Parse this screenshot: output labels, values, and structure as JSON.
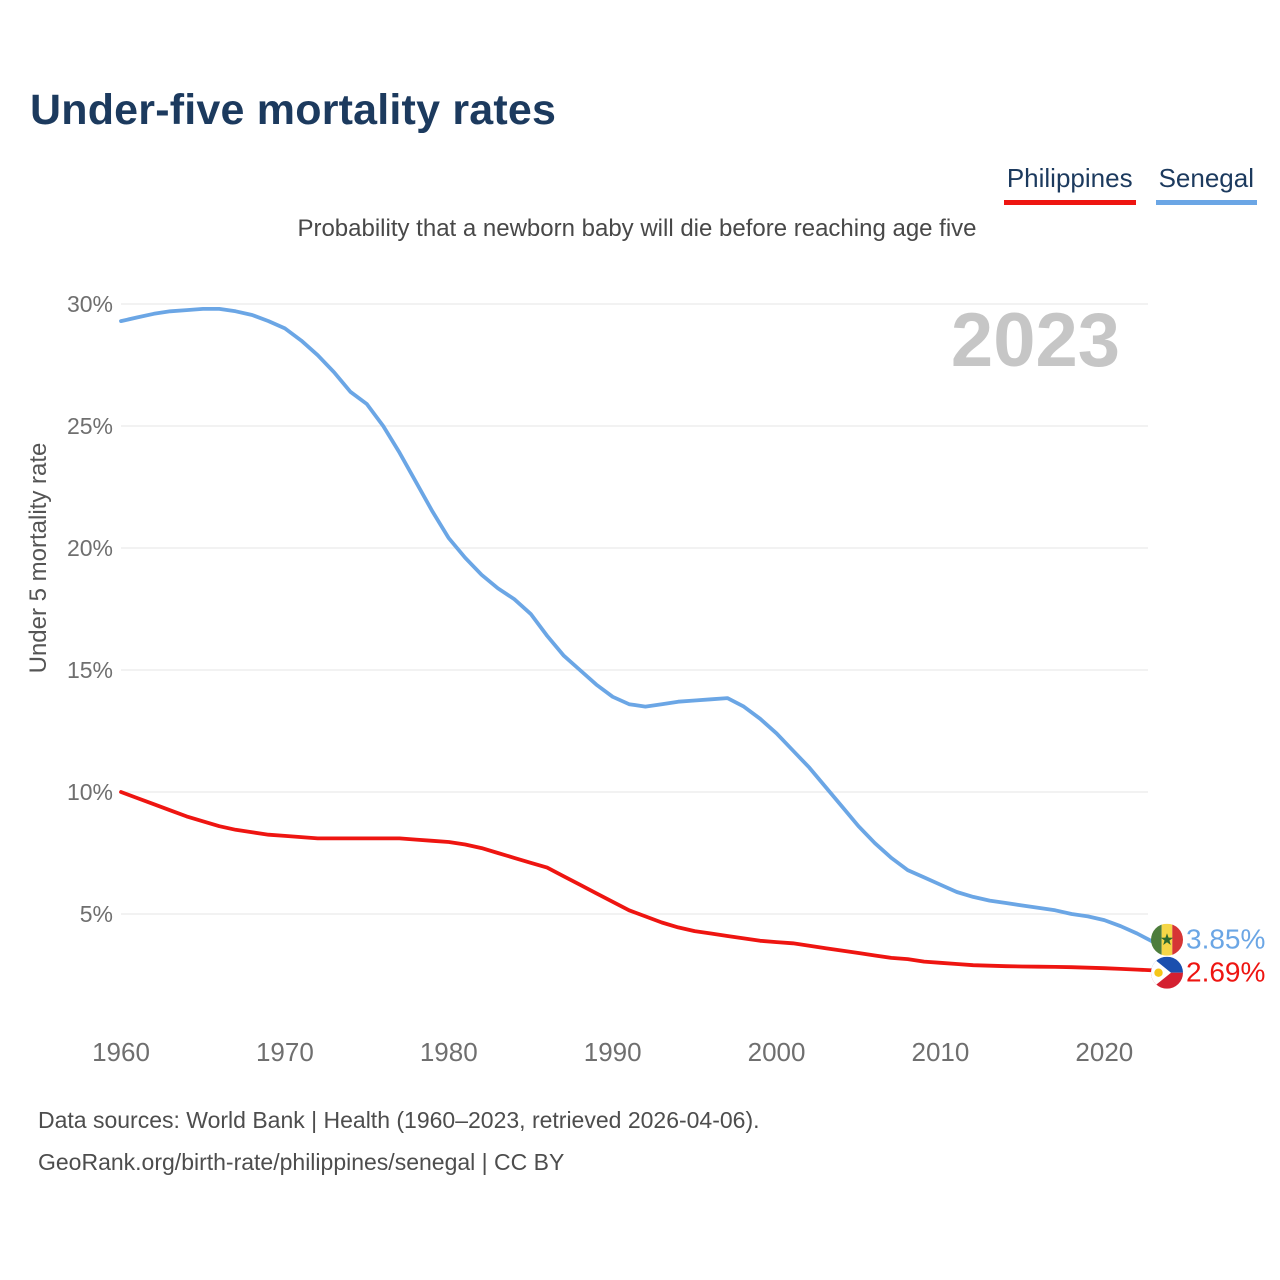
{
  "title": "Under-five mortality rates",
  "subtitle": "Probability that a newborn baby will die before reaching age five",
  "legend": [
    {
      "label": "Philippines",
      "color": "#ee1511"
    },
    {
      "label": "Senegal",
      "color": "#6ba6e5"
    }
  ],
  "footer": {
    "line1": "Data sources: World Bank | Health (1960–2023, retrieved 2026-04-06).",
    "line2": "GeoRank.org/birth-rate/philippines/senegal | CC BY"
  },
  "chart_data": {
    "type": "line",
    "title": "Under-five mortality rates",
    "subtitle": "Probability that a newborn baby will die before reaching age five",
    "xlabel": "",
    "ylabel": "Under 5 mortality rate",
    "watermark": "2023",
    "grid": "horizontal",
    "legend_position": "top-right",
    "xlim": [
      1960,
      2023
    ],
    "ylim_percent": [
      2,
      31
    ],
    "x_ticks": [
      1960,
      1970,
      1980,
      1990,
      2000,
      2010,
      2020
    ],
    "y_ticks_percent": [
      5,
      10,
      15,
      20,
      25,
      30
    ],
    "colors": {
      "grid": "#e9e9e9",
      "tick_label": "#6f6f6f",
      "axis_title": "#555555",
      "watermark": "#c6c6c6"
    },
    "series": [
      {
        "name": "Philippines",
        "color": "#ee1511",
        "end_label": "2.69%",
        "flag_icon": "philippines-flag-icon",
        "points": [
          [
            1960,
            10.0
          ],
          [
            1961,
            9.75
          ],
          [
            1962,
            9.5
          ],
          [
            1963,
            9.25
          ],
          [
            1964,
            9.0
          ],
          [
            1965,
            8.8
          ],
          [
            1966,
            8.6
          ],
          [
            1967,
            8.45
          ],
          [
            1968,
            8.35
          ],
          [
            1969,
            8.25
          ],
          [
            1970,
            8.2
          ],
          [
            1971,
            8.15
          ],
          [
            1972,
            8.1
          ],
          [
            1973,
            8.1
          ],
          [
            1974,
            8.1
          ],
          [
            1975,
            8.1
          ],
          [
            1976,
            8.1
          ],
          [
            1977,
            8.1
          ],
          [
            1978,
            8.05
          ],
          [
            1979,
            8.0
          ],
          [
            1980,
            7.95
          ],
          [
            1981,
            7.85
          ],
          [
            1982,
            7.7
          ],
          [
            1983,
            7.5
          ],
          [
            1984,
            7.3
          ],
          [
            1985,
            7.1
          ],
          [
            1986,
            6.9
          ],
          [
            1987,
            6.55
          ],
          [
            1988,
            6.2
          ],
          [
            1989,
            5.85
          ],
          [
            1990,
            5.5
          ],
          [
            1991,
            5.15
          ],
          [
            1992,
            4.9
          ],
          [
            1993,
            4.65
          ],
          [
            1994,
            4.45
          ],
          [
            1995,
            4.3
          ],
          [
            1996,
            4.2
          ],
          [
            1997,
            4.1
          ],
          [
            1998,
            4.0
          ],
          [
            1999,
            3.9
          ],
          [
            2000,
            3.85
          ],
          [
            2001,
            3.8
          ],
          [
            2002,
            3.7
          ],
          [
            2003,
            3.6
          ],
          [
            2004,
            3.5
          ],
          [
            2005,
            3.4
          ],
          [
            2006,
            3.3
          ],
          [
            2007,
            3.2
          ],
          [
            2008,
            3.15
          ],
          [
            2009,
            3.05
          ],
          [
            2010,
            3.0
          ],
          [
            2011,
            2.95
          ],
          [
            2012,
            2.9
          ],
          [
            2013,
            2.88
          ],
          [
            2014,
            2.86
          ],
          [
            2015,
            2.85
          ],
          [
            2016,
            2.84
          ],
          [
            2017,
            2.83
          ],
          [
            2018,
            2.82
          ],
          [
            2019,
            2.8
          ],
          [
            2020,
            2.78
          ],
          [
            2021,
            2.75
          ],
          [
            2022,
            2.72
          ],
          [
            2023,
            2.69
          ]
        ]
      },
      {
        "name": "Senegal",
        "color": "#6ba6e5",
        "end_label": "3.85%",
        "flag_icon": "senegal-flag-icon",
        "points": [
          [
            1960,
            29.3
          ],
          [
            1961,
            29.45
          ],
          [
            1962,
            29.6
          ],
          [
            1963,
            29.7
          ],
          [
            1964,
            29.75
          ],
          [
            1965,
            29.8
          ],
          [
            1966,
            29.8
          ],
          [
            1967,
            29.7
          ],
          [
            1968,
            29.55
          ],
          [
            1969,
            29.3
          ],
          [
            1970,
            29.0
          ],
          [
            1971,
            28.5
          ],
          [
            1972,
            27.9
          ],
          [
            1973,
            27.2
          ],
          [
            1974,
            26.4
          ],
          [
            1975,
            25.9
          ],
          [
            1976,
            25.0
          ],
          [
            1977,
            23.9
          ],
          [
            1978,
            22.7
          ],
          [
            1979,
            21.5
          ],
          [
            1980,
            20.4
          ],
          [
            1981,
            19.6
          ],
          [
            1982,
            18.9
          ],
          [
            1983,
            18.35
          ],
          [
            1984,
            17.9
          ],
          [
            1985,
            17.3
          ],
          [
            1986,
            16.4
          ],
          [
            1987,
            15.6
          ],
          [
            1988,
            15.0
          ],
          [
            1989,
            14.4
          ],
          [
            1990,
            13.9
          ],
          [
            1991,
            13.6
          ],
          [
            1992,
            13.5
          ],
          [
            1993,
            13.6
          ],
          [
            1994,
            13.7
          ],
          [
            1995,
            13.75
          ],
          [
            1996,
            13.8
          ],
          [
            1997,
            13.85
          ],
          [
            1998,
            13.5
          ],
          [
            1999,
            13.0
          ],
          [
            2000,
            12.4
          ],
          [
            2001,
            11.7
          ],
          [
            2002,
            11.0
          ],
          [
            2003,
            10.2
          ],
          [
            2004,
            9.4
          ],
          [
            2005,
            8.6
          ],
          [
            2006,
            7.9
          ],
          [
            2007,
            7.3
          ],
          [
            2008,
            6.8
          ],
          [
            2009,
            6.5
          ],
          [
            2010,
            6.2
          ],
          [
            2011,
            5.9
          ],
          [
            2012,
            5.7
          ],
          [
            2013,
            5.55
          ],
          [
            2014,
            5.45
          ],
          [
            2015,
            5.35
          ],
          [
            2016,
            5.25
          ],
          [
            2017,
            5.15
          ],
          [
            2018,
            5.0
          ],
          [
            2019,
            4.9
          ],
          [
            2020,
            4.75
          ],
          [
            2021,
            4.5
          ],
          [
            2022,
            4.2
          ],
          [
            2023,
            3.85
          ]
        ]
      }
    ]
  }
}
